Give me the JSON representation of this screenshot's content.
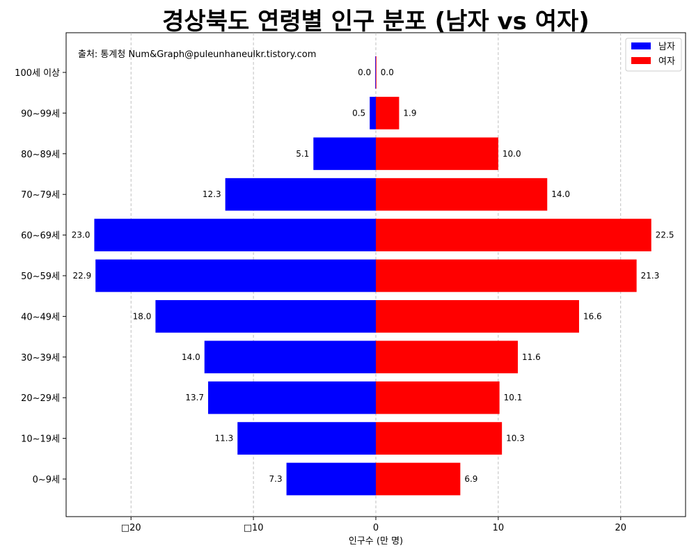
{
  "chart_data": {
    "type": "bar",
    "orientation": "horizontal",
    "title": "경상북도 연령별 인구 분포 (남자 vs 여자)",
    "xlabel": "인구수 (만 명)",
    "ylabel": "",
    "source_note": "출처: 통계청 Num&Graph@puleunhaneulkr.tistory.com",
    "categories": [
      "0~9세",
      "10~19세",
      "20~29세",
      "30~39세",
      "40~49세",
      "50~59세",
      "60~69세",
      "70~79세",
      "80~89세",
      "90~99세",
      "100세 이상"
    ],
    "series": [
      {
        "name": "남자",
        "color": "#0000ff",
        "values": [
          7.3,
          11.3,
          13.7,
          14.0,
          18.0,
          22.9,
          23.0,
          12.3,
          5.1,
          0.5,
          0.0
        ],
        "direction": "left"
      },
      {
        "name": "여자",
        "color": "#ff0000",
        "values": [
          6.9,
          10.3,
          10.1,
          11.6,
          16.6,
          21.3,
          22.5,
          14.0,
          10.0,
          1.9,
          0.0
        ],
        "direction": "right"
      }
    ],
    "value_labels": {
      "남자": [
        "7.3",
        "11.3",
        "13.7",
        "14.0",
        "18.0",
        "22.9",
        "23.0",
        "12.3",
        "5.1",
        "0.5",
        "0.0"
      ],
      "여자": [
        "6.9",
        "10.3",
        "10.1",
        "11.6",
        "16.6",
        "21.3",
        "22.5",
        "14.0",
        "10.0",
        "1.9",
        "0.0"
      ]
    },
    "xticks": [
      -20,
      -10,
      0,
      10,
      20
    ],
    "xtick_labels": [
      "□20",
      "□10",
      "0",
      "10",
      "20"
    ],
    "xlim": [
      -25.3,
      25.3
    ],
    "grid": "x-dashed",
    "legend_position": "top-right"
  }
}
